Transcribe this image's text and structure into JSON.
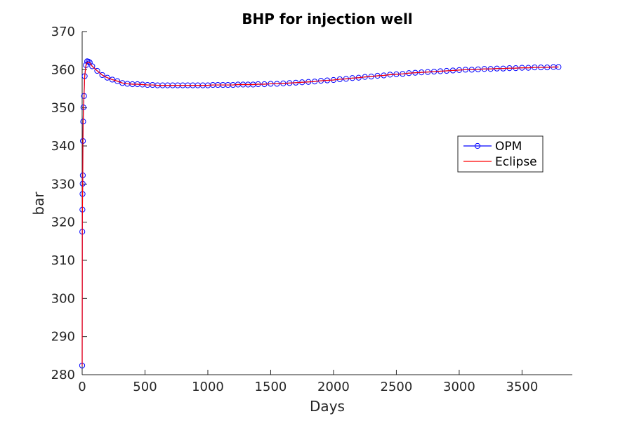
{
  "chart_data": {
    "type": "line",
    "title": "BHP for injection well",
    "xlabel": "Days",
    "ylabel": "bar",
    "xlim": [
      0,
      3900
    ],
    "ylim": [
      280,
      370
    ],
    "xticks": [
      0,
      500,
      1000,
      1500,
      2000,
      2500,
      3000,
      3500
    ],
    "yticks": [
      280,
      290,
      300,
      310,
      320,
      330,
      340,
      350,
      360,
      370
    ],
    "grid": false,
    "legend_position": "right",
    "series": [
      {
        "name": "OPM",
        "color": "#0000ff",
        "marker": "circle",
        "line": "solid",
        "x": [
          0,
          1,
          2,
          3,
          4,
          5,
          6,
          8,
          10,
          15,
          20,
          30,
          40,
          50,
          60,
          80,
          120,
          160,
          200,
          240,
          280,
          320,
          360,
          400,
          440,
          480,
          520,
          560,
          600,
          640,
          680,
          720,
          760,
          800,
          840,
          880,
          920,
          960,
          1000,
          1040,
          1080,
          1120,
          1160,
          1200,
          1240,
          1280,
          1320,
          1360,
          1400,
          1450,
          1500,
          1550,
          1600,
          1650,
          1700,
          1750,
          1800,
          1850,
          1900,
          1950,
          2000,
          2050,
          2100,
          2150,
          2200,
          2250,
          2300,
          2350,
          2400,
          2450,
          2500,
          2550,
          2600,
          2650,
          2700,
          2750,
          2800,
          2850,
          2900,
          2950,
          3000,
          3050,
          3100,
          3150,
          3200,
          3250,
          3300,
          3350,
          3400,
          3450,
          3500,
          3550,
          3600,
          3650,
          3700,
          3750,
          3790
        ],
        "y": [
          282.4,
          317.5,
          323.3,
          327.4,
          330.1,
          332.3,
          341.3,
          346.4,
          350.1,
          353.1,
          358.3,
          361.2,
          362.2,
          362.1,
          361.9,
          360.9,
          359.7,
          358.6,
          357.9,
          357.4,
          357.0,
          356.5,
          356.3,
          356.2,
          356.2,
          356.1,
          356.0,
          356.0,
          355.9,
          355.9,
          355.9,
          355.9,
          355.9,
          355.9,
          355.9,
          355.9,
          355.9,
          355.9,
          355.9,
          356.0,
          356.0,
          356.0,
          356.0,
          356.0,
          356.1,
          356.1,
          356.1,
          356.1,
          356.2,
          356.2,
          356.3,
          356.3,
          356.4,
          356.5,
          356.6,
          356.7,
          356.8,
          356.9,
          357.1,
          357.2,
          357.3,
          357.5,
          357.6,
          357.8,
          357.9,
          358.1,
          358.2,
          358.4,
          358.5,
          358.7,
          358.8,
          358.9,
          359.1,
          359.2,
          359.3,
          359.4,
          359.5,
          359.6,
          359.7,
          359.8,
          359.9,
          360.0,
          360.0,
          360.1,
          360.2,
          360.2,
          360.3,
          360.3,
          360.4,
          360.4,
          360.5,
          360.5,
          360.6,
          360.6,
          360.6,
          360.7,
          360.7
        ]
      },
      {
        "name": "Eclipse",
        "color": "#ff0000",
        "marker": "none",
        "line": "solid",
        "x": [
          0,
          1,
          2,
          3,
          4,
          5,
          6,
          8,
          10,
          15,
          20,
          30,
          40,
          50,
          60,
          80,
          120,
          160,
          200,
          240,
          280,
          320,
          360,
          400,
          440,
          480,
          520,
          560,
          600,
          640,
          680,
          720,
          760,
          800,
          840,
          880,
          920,
          960,
          1000,
          1040,
          1080,
          1120,
          1160,
          1200,
          1240,
          1280,
          1320,
          1360,
          1400,
          1450,
          1500,
          1550,
          1600,
          1650,
          1700,
          1750,
          1800,
          1850,
          1900,
          1950,
          2000,
          2050,
          2100,
          2150,
          2200,
          2250,
          2300,
          2350,
          2400,
          2450,
          2500,
          2550,
          2600,
          2650,
          2700,
          2750,
          2800,
          2850,
          2900,
          2950,
          3000,
          3050,
          3100,
          3150,
          3200,
          3250,
          3300,
          3350,
          3400,
          3450,
          3500,
          3550,
          3600,
          3650,
          3700,
          3750,
          3790
        ],
        "y": [
          282.4,
          317.5,
          323.3,
          327.4,
          330.1,
          332.3,
          341.3,
          346.4,
          350.1,
          353.1,
          358.3,
          361.0,
          361.9,
          362.0,
          361.8,
          360.9,
          359.7,
          358.6,
          357.9,
          357.4,
          357.0,
          356.5,
          356.3,
          356.2,
          356.2,
          356.1,
          356.0,
          356.0,
          355.9,
          355.9,
          355.9,
          355.9,
          355.9,
          355.9,
          355.9,
          355.9,
          355.9,
          355.9,
          355.9,
          356.0,
          356.0,
          356.0,
          356.0,
          356.0,
          356.1,
          356.1,
          356.1,
          356.1,
          356.2,
          356.2,
          356.3,
          356.3,
          356.4,
          356.5,
          356.6,
          356.7,
          356.8,
          356.9,
          357.1,
          357.2,
          357.3,
          357.5,
          357.6,
          357.8,
          357.9,
          358.1,
          358.2,
          358.4,
          358.5,
          358.7,
          358.8,
          358.9,
          359.1,
          359.2,
          359.3,
          359.4,
          359.5,
          359.6,
          359.7,
          359.8,
          359.9,
          360.0,
          360.0,
          360.1,
          360.2,
          360.2,
          360.3,
          360.3,
          360.4,
          360.4,
          360.5,
          360.5,
          360.6,
          360.6,
          360.6,
          360.7,
          360.7
        ]
      }
    ]
  }
}
